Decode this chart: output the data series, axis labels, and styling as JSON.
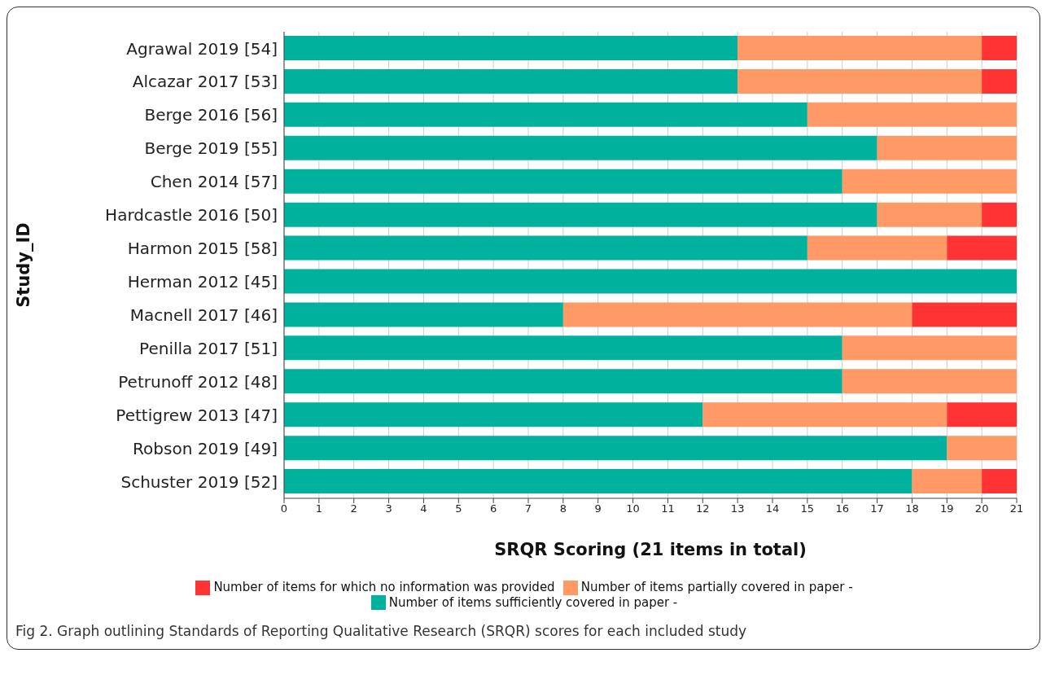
{
  "chart_data": {
    "type": "bar",
    "orientation": "horizontal",
    "stacked": true,
    "categories": [
      "Agrawal 2019 [54]",
      "Alcazar 2017 [53]",
      "Berge 2016 [56]",
      "Berge 2019 [55]",
      "Chen 2014 [57]",
      "Hardcastle 2016 [50]",
      "Harmon 2015 [58]",
      "Herman 2012 [45]",
      "Macnell 2017 [46]",
      "Penilla 2017 [51]",
      "Petrunoff 2012 [48]",
      "Pettigrew 2013 [47]",
      "Robson 2019 [49]",
      "Schuster 2019 [52]"
    ],
    "series": [
      {
        "name": "Number of items sufficiently covered in paper -",
        "color": "#00b29e",
        "values": [
          13,
          13,
          15,
          17,
          16,
          17,
          15,
          21,
          8,
          16,
          16,
          12,
          19,
          18
        ]
      },
      {
        "name": "Number of items partially covered in paper -",
        "color": "#ff9966",
        "values": [
          7,
          7,
          6,
          4,
          5,
          3,
          4,
          0,
          10,
          5,
          5,
          7,
          2,
          2
        ]
      },
      {
        "name": "Number of items for which no information was provided",
        "color": "#ff3333",
        "values": [
          1,
          1,
          0,
          0,
          0,
          1,
          2,
          0,
          3,
          0,
          0,
          2,
          0,
          1
        ]
      }
    ],
    "xlim": [
      0,
      21
    ],
    "xticks": [
      0,
      1,
      2,
      3,
      4,
      5,
      6,
      7,
      8,
      9,
      10,
      11,
      12,
      13,
      14,
      15,
      16,
      17,
      18,
      19,
      20,
      21
    ],
    "xlabel": "SRQR Scoring (21 items in total)",
    "ylabel": "Study_ID",
    "grid": "x",
    "legend": "bottom",
    "annotations": [
      "Fig 2. Graph outlining Standards of Reporting Qualitative Research (SRQR) scores for each included study"
    ]
  }
}
